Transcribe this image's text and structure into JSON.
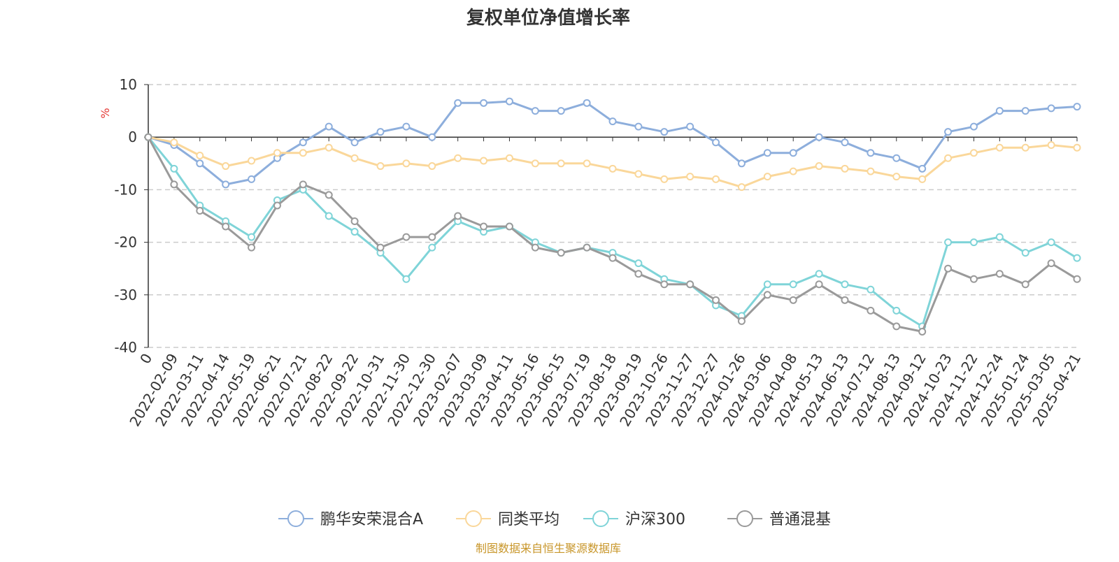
{
  "chart_data": {
    "type": "line",
    "title": "复权单位净值增长率",
    "ylabel": "%",
    "ylim": [
      -40,
      10
    ],
    "yticks": [
      10,
      0,
      -10,
      -20,
      -30,
      -40
    ],
    "ytick_labels": [
      "10",
      "0",
      "-10",
      "-20",
      "-30",
      "-40"
    ],
    "grid": true,
    "legend_position": "bottom",
    "xtick_labels": [
      "0",
      "2022-02-09",
      "2022-03-11",
      "2022-04-14",
      "2022-05-19",
      "2022-06-21",
      "2022-07-21",
      "2022-08-22",
      "2022-09-22",
      "2022-10-31",
      "2022-11-30",
      "2022-12-30",
      "2023-02-07",
      "2023-03-09",
      "2023-04-11",
      "2023-05-16",
      "2023-06-15",
      "2023-07-19",
      "2023-08-18",
      "2023-09-19",
      "2023-10-26",
      "2023-11-27",
      "2023-12-27",
      "2024-01-26",
      "2024-03-06",
      "2024-04-08",
      "2024-05-13",
      "2024-06-13",
      "2024-07-12",
      "2024-08-13",
      "2024-09-12",
      "2024-10-23",
      "2024-11-22",
      "2024-12-24",
      "2025-01-24",
      "2025-03-05",
      "2025-04-21"
    ],
    "x_index": [
      0,
      1,
      2,
      3,
      4,
      5,
      6,
      7,
      8,
      9,
      10,
      11,
      12,
      13,
      14,
      15,
      16,
      17,
      18,
      19,
      20,
      21,
      22,
      23,
      24,
      25,
      26,
      27,
      28,
      29,
      30,
      31,
      32,
      33,
      34,
      35,
      36
    ],
    "series": [
      {
        "name": "鹏华安荣混合A",
        "color": "#8daedc",
        "values": [
          0,
          -1.5,
          -5,
          -9,
          -8,
          -4,
          -1,
          2,
          -1,
          1,
          2,
          0,
          6.5,
          6.5,
          6.8,
          5,
          5,
          6.5,
          3,
          2,
          1,
          2,
          -1,
          -5,
          -3,
          -3,
          0,
          -1,
          -3,
          -4,
          -6,
          1,
          2,
          5,
          5,
          5.5,
          5.8
        ]
      },
      {
        "name": "同类平均",
        "color": "#fad79a",
        "values": [
          0,
          -1,
          -3.5,
          -5.5,
          -4.5,
          -3,
          -3,
          -2,
          -4,
          -5.5,
          -5,
          -5.5,
          -4,
          -4.5,
          -4,
          -5,
          -5,
          -5,
          -6,
          -7,
          -8,
          -7.5,
          -8,
          -9.5,
          -7.5,
          -6.5,
          -5.5,
          -6,
          -6.5,
          -7.5,
          -8,
          -4,
          -3,
          -2,
          -2,
          -1.5,
          -2
        ]
      },
      {
        "name": "沪深300",
        "color": "#7fd4d8",
        "values": [
          0,
          -6,
          -13,
          -16,
          -19,
          -12,
          -10,
          -15,
          -18,
          -22,
          -27,
          -21,
          -16,
          -18,
          -17,
          -20,
          -22,
          -21,
          -22,
          -24,
          -27,
          -28,
          -32,
          -34,
          -28,
          -28,
          -26,
          -28,
          -29,
          -33,
          -36,
          -20,
          -20,
          -19,
          -22,
          -20,
          -23
        ]
      },
      {
        "name": "普通混基",
        "color": "#9a9a9a",
        "values": [
          0,
          -9,
          -14,
          -17,
          -21,
          -13,
          -9,
          -11,
          -16,
          -21,
          -19,
          -19,
          -15,
          -17,
          -17,
          -21,
          -22,
          -21,
          -23,
          -26,
          -28,
          -28,
          -31,
          -35,
          -30,
          -31,
          -28,
          -31,
          -33,
          -36,
          -37,
          -25,
          -27,
          -26,
          -28,
          -24,
          -27
        ]
      }
    ]
  },
  "footer": {
    "source": "制图数据来自恒生聚源数据库"
  }
}
